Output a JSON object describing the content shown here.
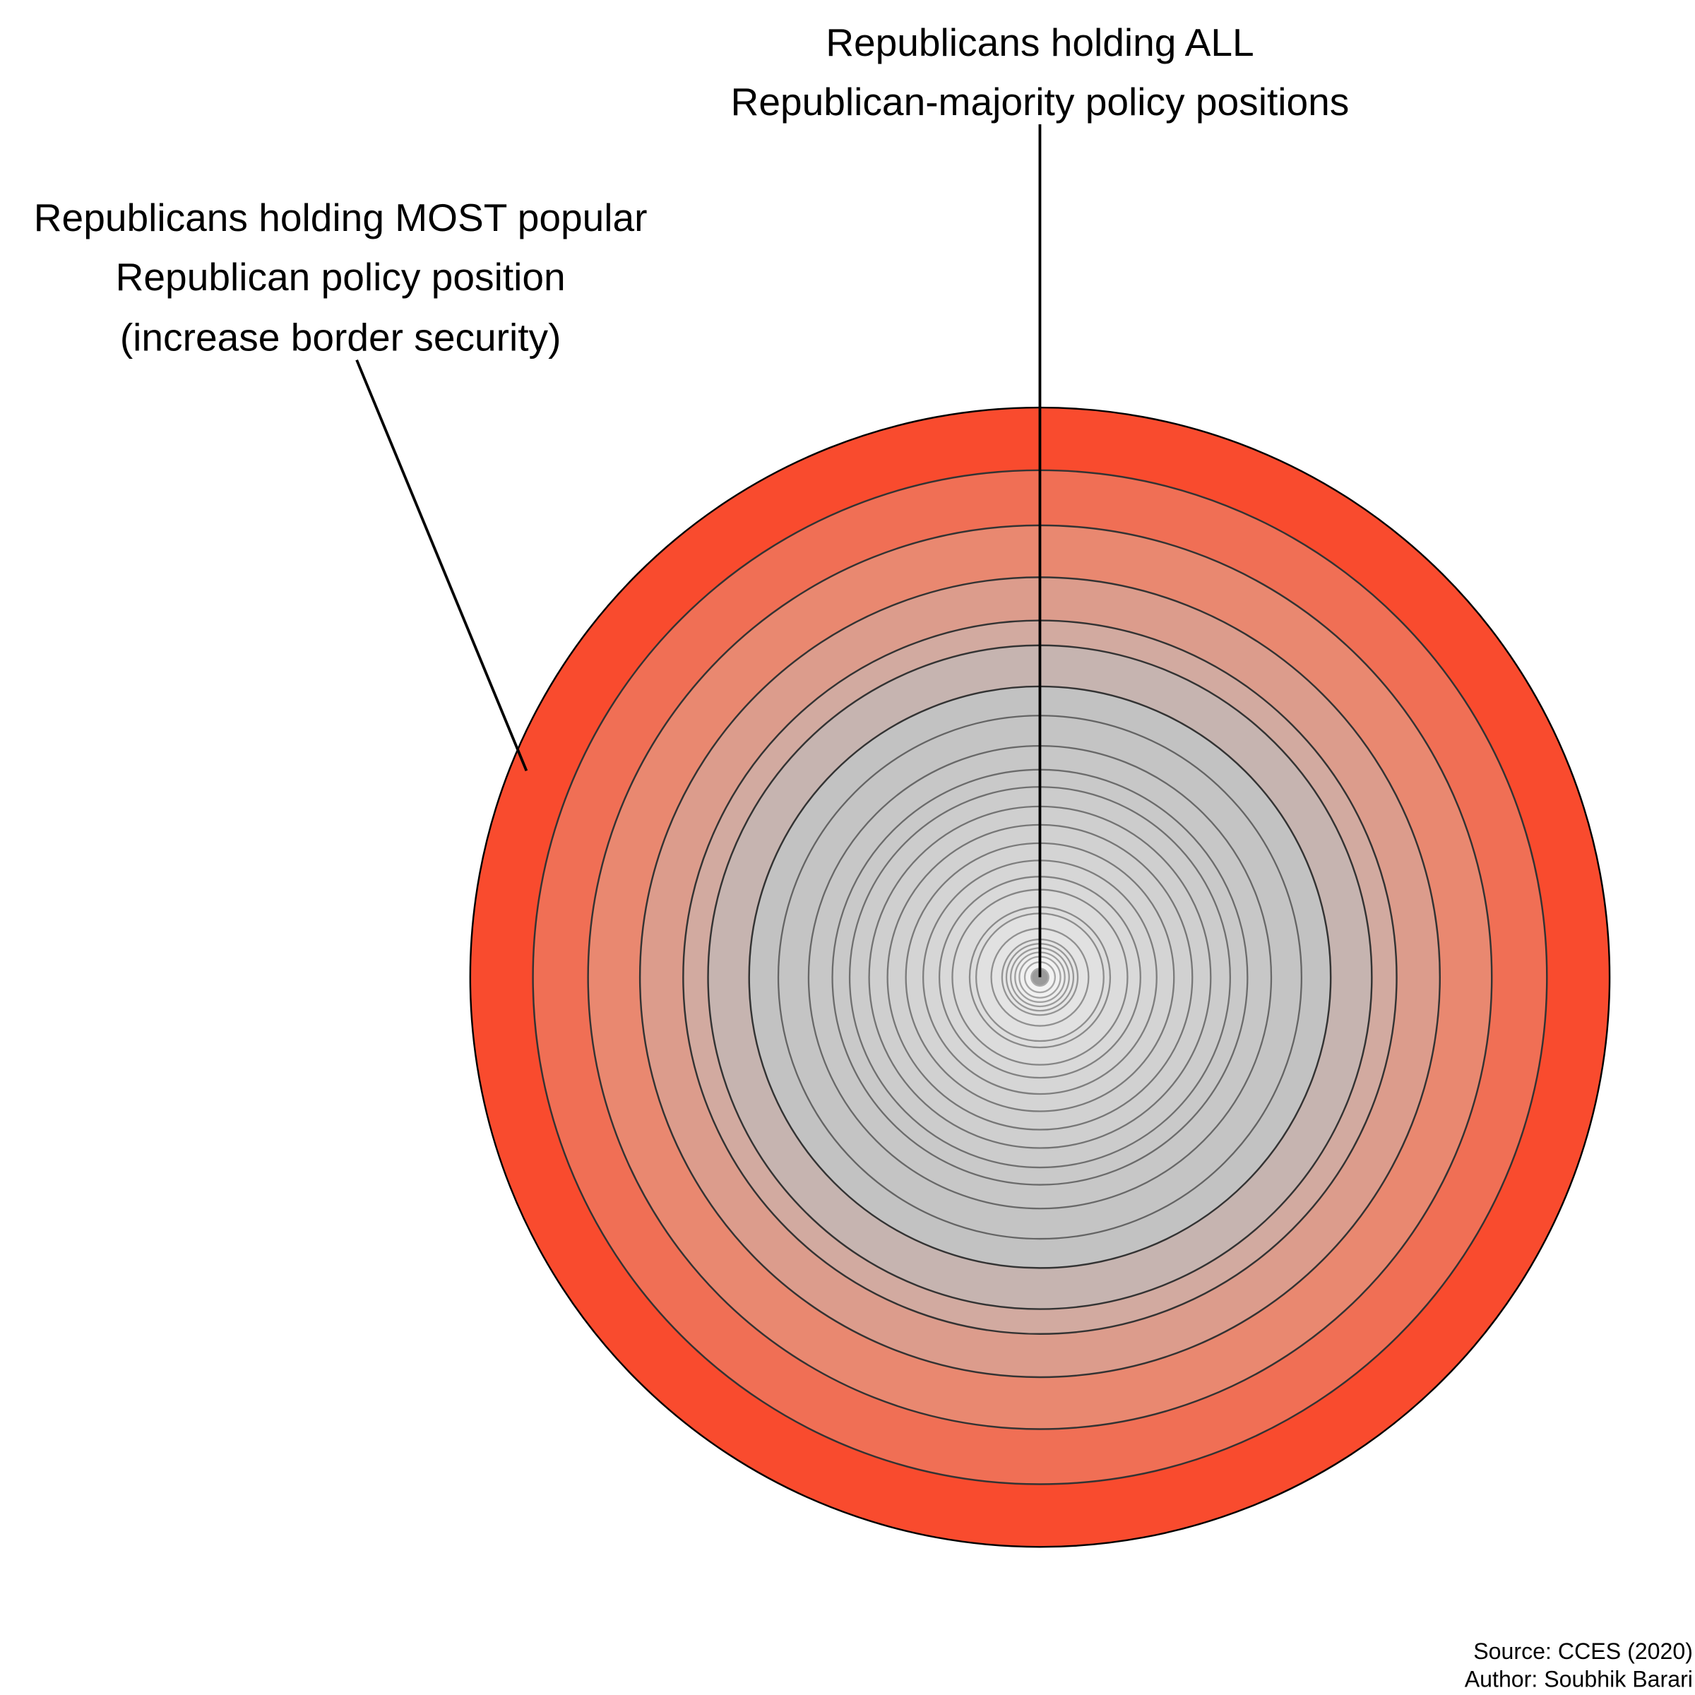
{
  "annotations": {
    "all": {
      "lines": [
        "Republicans holding ALL",
        "Republican-majority policy positions"
      ]
    },
    "most": {
      "lines": [
        "Republicans holding MOST popular",
        "Republican policy position",
        "(increase border security)"
      ]
    }
  },
  "credits": {
    "source": "Source: CCES (2020)",
    "author": "Author: Soubhik Barari"
  }
}
